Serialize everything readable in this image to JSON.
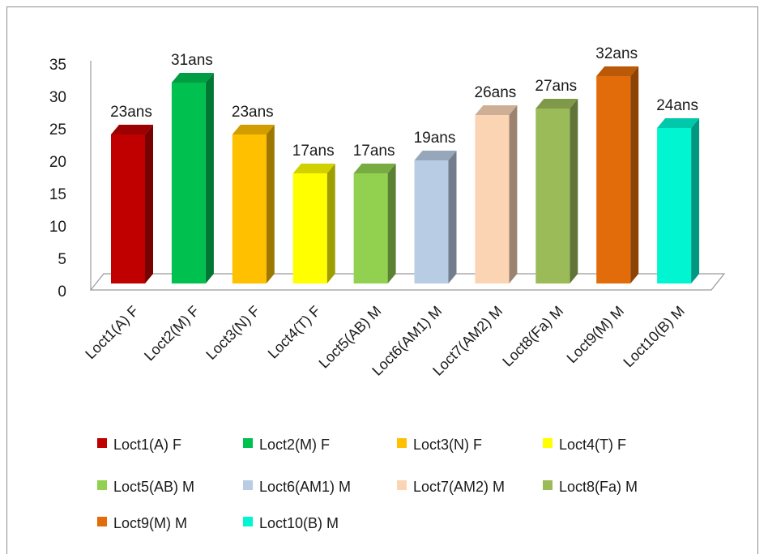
{
  "chart_data": {
    "type": "bar",
    "title": "",
    "xlabel": "",
    "ylabel": "",
    "ylim": [
      0,
      35
    ],
    "yticks": [
      "0",
      "5",
      "10",
      "15",
      "20",
      "25",
      "30",
      "35"
    ],
    "grid": false,
    "legend_position": "bottom",
    "categories": [
      "Loct1(A) F",
      "Loct2(M) F",
      "Loct3(N) F",
      "Loct4(T) F",
      "Loct5(AB) M",
      "Loct6(AM1) M",
      "Loct7(AM2) M",
      "Loct8(Fa) M",
      "Loct9(M) M",
      "Loct10(B) M"
    ],
    "values": [
      23,
      31,
      23,
      17,
      17,
      19,
      26,
      27,
      32,
      24
    ],
    "data_labels": [
      "23ans",
      "31ans",
      "23ans",
      "17ans",
      "17ans",
      "19ans",
      "26ans",
      "27ans",
      "32ans",
      "24ans"
    ],
    "colors": [
      "#c00000",
      "#00c050",
      "#ffc000",
      "#ffff00",
      "#92d050",
      "#b8cce4",
      "#fbd4b4",
      "#9bbb59",
      "#e36c0a",
      "#00f5d0"
    ]
  }
}
